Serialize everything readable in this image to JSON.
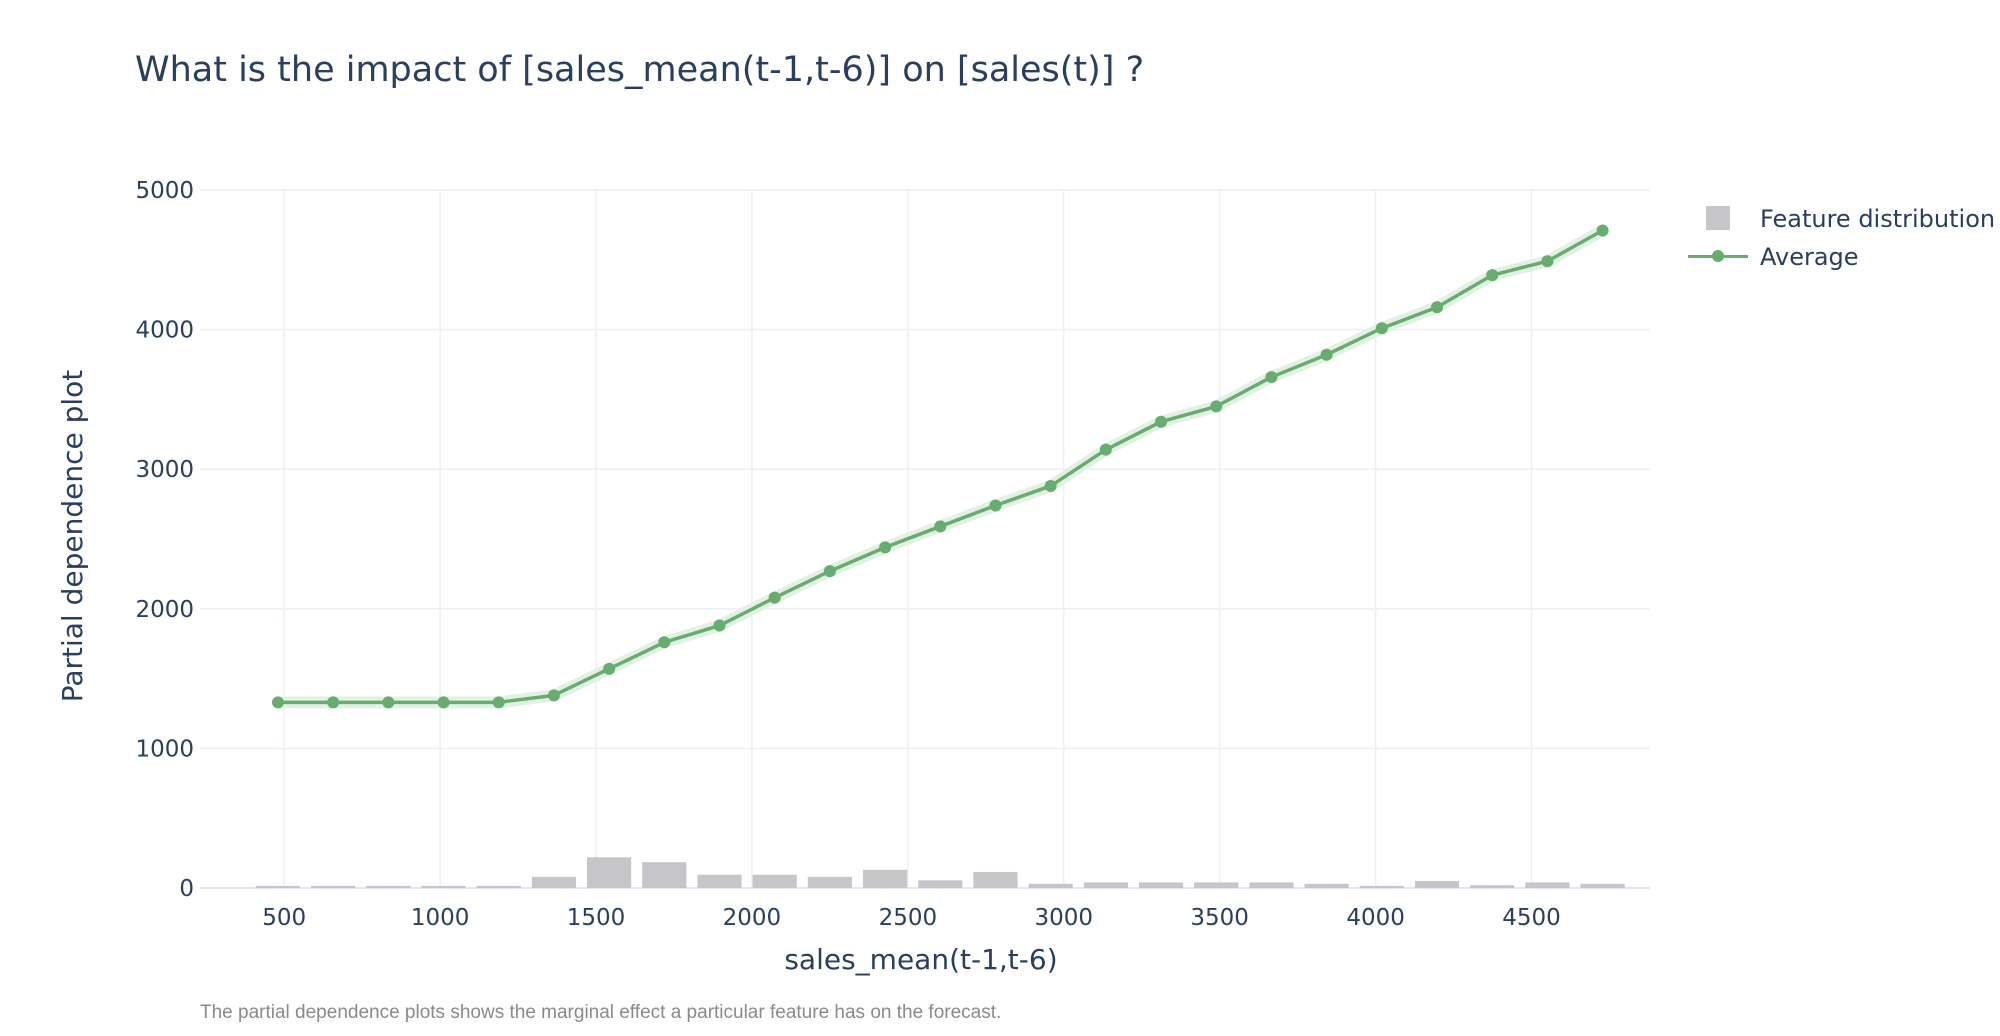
{
  "chart_data": {
    "type": "line",
    "title": "What is the impact of [sales_mean(t-1,t-6)] on [sales(t)] ?",
    "xlabel": "sales_mean(t-1,t-6)",
    "ylabel": "Partial dependence plot",
    "xlim": [
      230,
      4880
    ],
    "ylim": [
      0,
      5000
    ],
    "x_ticks": [
      500,
      1000,
      1500,
      2000,
      2500,
      3000,
      3500,
      4000,
      4500
    ],
    "y_ticks": [
      0,
      1000,
      2000,
      3000,
      4000,
      5000
    ],
    "grid": true,
    "legend_position": "top-right",
    "series": [
      {
        "name": "Average",
        "type": "line",
        "color": "#66ad6f",
        "x": [
          480,
          657,
          834,
          1011,
          1188,
          1365,
          1542,
          1719,
          1896,
          2073,
          2250,
          2427,
          2604,
          2781,
          2958,
          3135,
          3312,
          3489,
          3666,
          3843,
          4020,
          4197,
          4374,
          4551,
          4728
        ],
        "y": [
          1330,
          1330,
          1330,
          1330,
          1330,
          1380,
          1570,
          1760,
          1880,
          2080,
          2270,
          2440,
          2590,
          2740,
          2880,
          3140,
          3340,
          3450,
          3660,
          3820,
          4010,
          4160,
          4390,
          4490,
          4710
        ]
      },
      {
        "name": "Feature distribution",
        "type": "bar",
        "color": "#c6c6c8",
        "x": [
          480,
          657,
          834,
          1011,
          1188,
          1365,
          1542,
          1719,
          1896,
          2073,
          2250,
          2427,
          2604,
          2781,
          2958,
          3135,
          3312,
          3489,
          3666,
          3843,
          4020,
          4197,
          4374,
          4551,
          4728
        ],
        "y": [
          15,
          15,
          15,
          15,
          15,
          80,
          220,
          185,
          95,
          95,
          80,
          130,
          55,
          115,
          30,
          40,
          40,
          40,
          40,
          30,
          15,
          50,
          20,
          40,
          30
        ]
      }
    ],
    "footnote": "The partial dependence plots shows the marginal effect a particular feature has on the forecast."
  }
}
